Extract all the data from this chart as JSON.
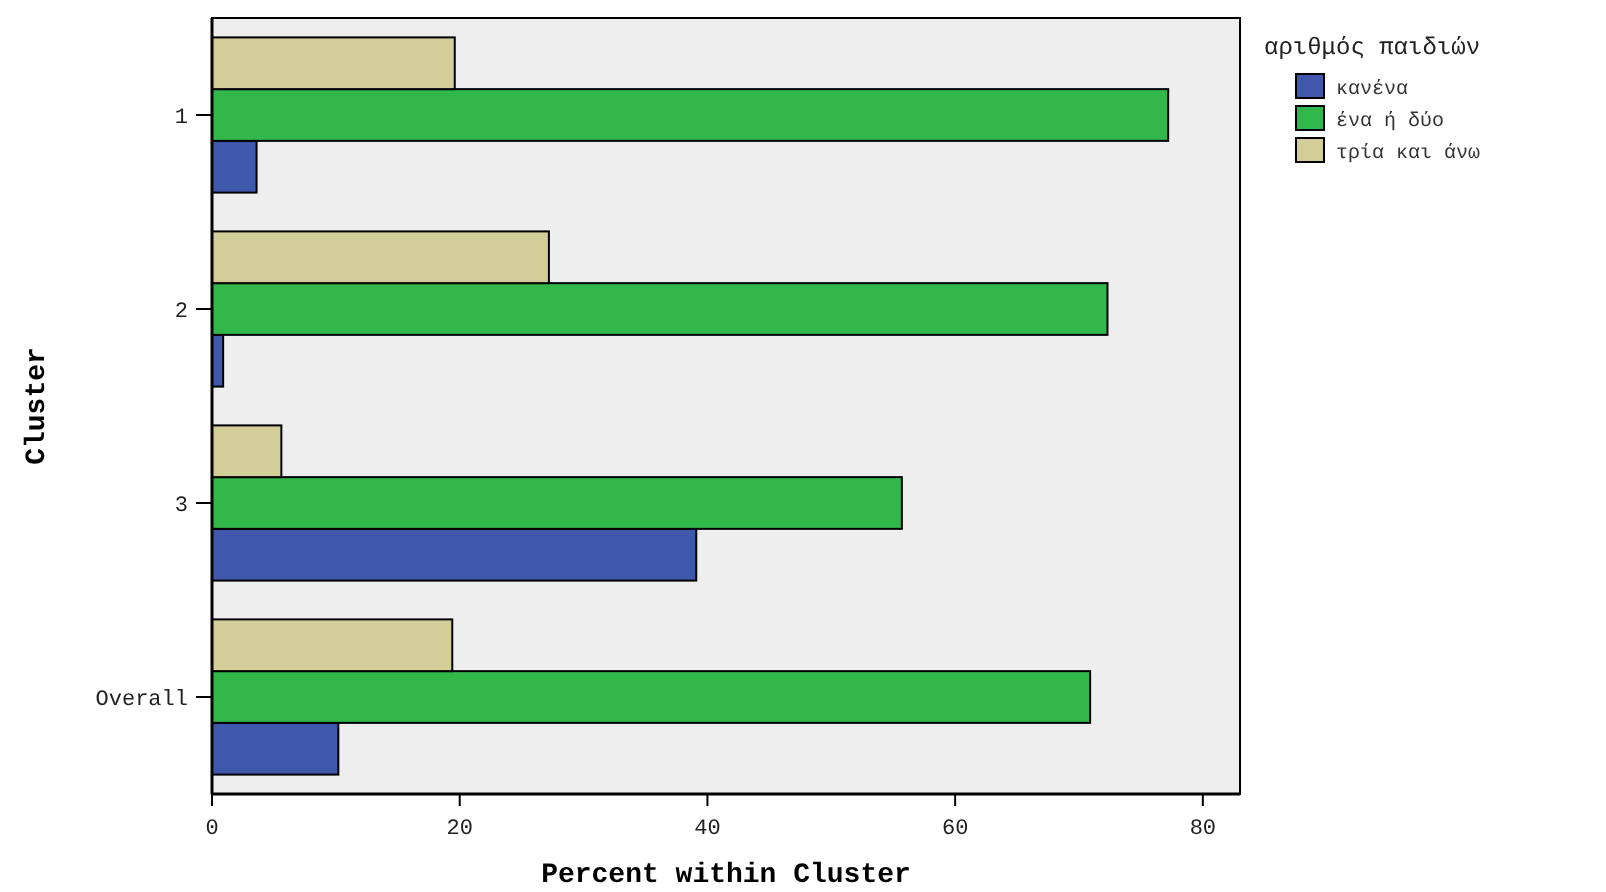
{
  "chart_data": {
    "type": "bar",
    "orientation": "horizontal",
    "xlabel": "Percent within Cluster",
    "ylabel": "Cluster",
    "legend_title": "αριθμός παιδιών",
    "legend": "top right",
    "categories": [
      "1",
      "2",
      "3",
      "Overall"
    ],
    "series": [
      {
        "name": "κανένα",
        "color": "#3f58ab",
        "values": [
          3.6,
          0.9,
          39.1,
          10.2
        ]
      },
      {
        "name": "ένα ή δύο",
        "color": "#31b74a",
        "values": [
          77.2,
          72.3,
          55.7,
          70.9
        ]
      },
      {
        "name": "τρία και άνω",
        "color": "#d3ce97",
        "values": [
          19.6,
          27.2,
          5.6,
          19.4
        ]
      }
    ],
    "xlim": [
      0,
      83
    ],
    "xticks": [
      0,
      20,
      40,
      60,
      80
    ],
    "grid": false
  }
}
